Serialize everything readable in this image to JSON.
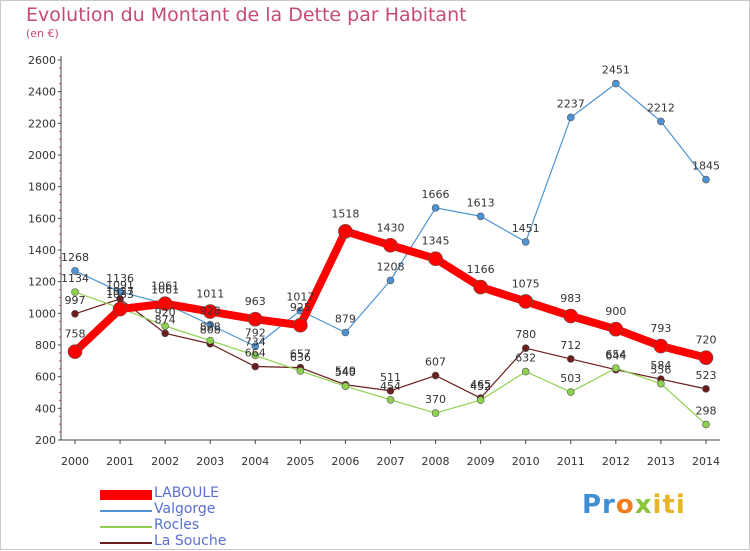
{
  "title": "Evolution du Montant de la Dette par Habitant",
  "subtitle": "(en €)",
  "logo": "Proxiti",
  "chart_data": {
    "type": "line",
    "x": [
      "2000",
      "2001",
      "2002",
      "2003",
      "2004",
      "2005",
      "2006",
      "2007",
      "2008",
      "2009",
      "2010",
      "2011",
      "2012",
      "2013",
      "2014"
    ],
    "ylim": [
      200,
      2600
    ],
    "yticks": [
      200,
      400,
      600,
      800,
      1000,
      1200,
      1400,
      1600,
      1800,
      2000,
      2200,
      2400,
      2600
    ],
    "grid": false,
    "legend_position": "bottom-left",
    "series": [
      {
        "name": "LABOULE",
        "color": "#ff0000",
        "values": [
          758,
          1027,
          1061,
          1011,
          963,
          925,
          1518,
          1430,
          1345,
          1166,
          1075,
          983,
          900,
          793,
          720
        ]
      },
      {
        "name": "Valgorge",
        "color": "#4e93d2",
        "values": [
          1268,
          1136,
          1061,
          928,
          792,
          1017,
          879,
          1208,
          1666,
          1613,
          1451,
          2237,
          2451,
          2212,
          1845
        ]
      },
      {
        "name": "Rocles",
        "color": "#8fd14f",
        "values": [
          1134,
          1033,
          920,
          828,
          734,
          636,
          540,
          454,
          370,
          452,
          632,
          503,
          654,
          556,
          298
        ]
      },
      {
        "name": "La Souche",
        "color": "#6b1c1c",
        "values": [
          997,
          1091,
          874,
          808,
          664,
          657,
          549,
          511,
          607,
          465,
          780,
          712,
          644,
          584,
          523
        ]
      }
    ]
  }
}
